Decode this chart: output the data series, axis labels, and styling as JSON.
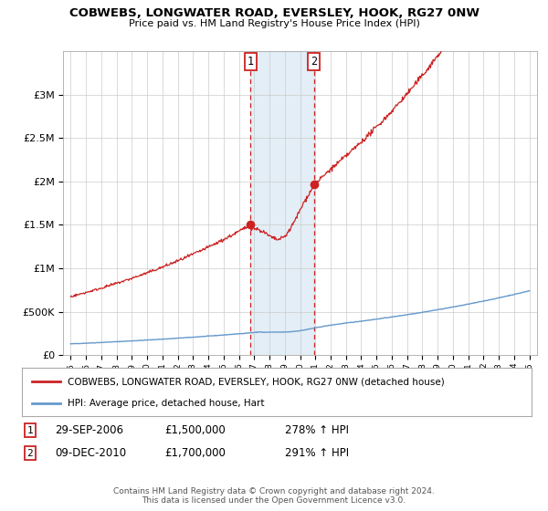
{
  "title": "COBWEBS, LONGWATER ROAD, EVERSLEY, HOOK, RG27 0NW",
  "subtitle": "Price paid vs. HM Land Registry's House Price Index (HPI)",
  "hpi_color": "#6699cc",
  "price_color": "#cc2222",
  "shaded_color": "#cce0f0",
  "sale1_year": 2006.75,
  "sale1_price": 1500000,
  "sale2_year": 2010.92,
  "sale2_price": 1700000,
  "sale1_date": "29-SEP-2006",
  "sale1_hpi_pct": "278%",
  "sale2_date": "09-DEC-2010",
  "sale2_hpi_pct": "291%",
  "ylim": [
    0,
    3500000
  ],
  "xlim": [
    1994.5,
    2025.5
  ],
  "yticks": [
    0,
    500000,
    1000000,
    1500000,
    2000000,
    2500000,
    3000000
  ],
  "footer": "Contains HM Land Registry data © Crown copyright and database right 2024.\nThis data is licensed under the Open Government Licence v3.0.",
  "legend_label1": "COBWEBS, LONGWATER ROAD, EVERSLEY, HOOK, RG27 0NW (detached house)",
  "legend_label2": "HPI: Average price, detached house, Hart"
}
